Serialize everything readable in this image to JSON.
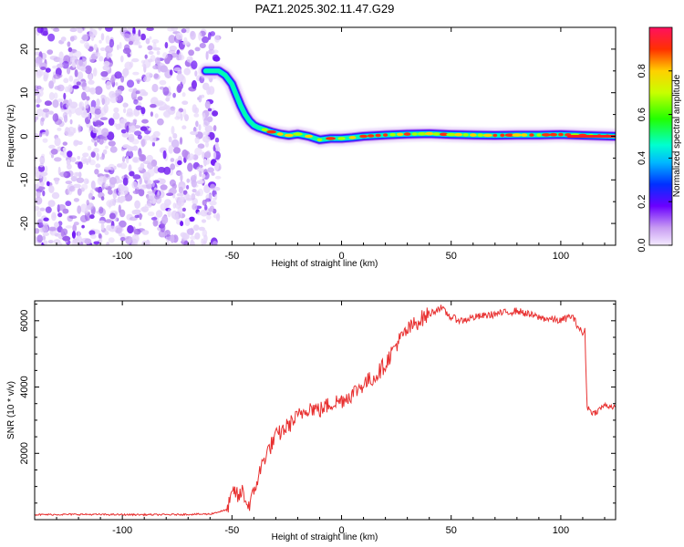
{
  "title": "PAZ1.2025.302.11.47.G29",
  "chart_data": [
    {
      "type": "heatmap",
      "name": "spectrogram",
      "xlabel": "Height of straight line (km)",
      "ylabel": "Frequency (Hz)",
      "xlim": [
        -140,
        125
      ],
      "ylim": [
        -25,
        25
      ],
      "x_ticks": [
        -100,
        -50,
        0,
        50,
        100
      ],
      "y_ticks": [
        -20,
        -10,
        0,
        10,
        20
      ],
      "colorbar": {
        "label": "Normalized spectral amplitude",
        "range": [
          0,
          1
        ],
        "ticks": [
          0.0,
          0.2,
          0.4,
          0.6,
          0.8
        ]
      },
      "noise_region_km": [
        -140,
        -56
      ],
      "ridge": {
        "x": [
          -62,
          -56,
          -53,
          -50,
          -48,
          -46,
          -44,
          -42,
          -40,
          -38,
          -35,
          -32,
          -28,
          -24,
          -20,
          -15,
          -10,
          -5,
          0,
          5,
          10,
          20,
          30,
          40,
          50,
          60,
          70,
          80,
          90,
          100,
          110,
          125
        ],
        "y": [
          15,
          15,
          14,
          12,
          9.5,
          7,
          5,
          3.5,
          2.5,
          2,
          1.5,
          1,
          0.5,
          0.2,
          0.5,
          0,
          -0.8,
          -0.5,
          -0.5,
          -0.3,
          0,
          0.3,
          0.5,
          0.6,
          0.4,
          0.3,
          0.2,
          0.3,
          0.3,
          0.4,
          0.2,
          0
        ]
      }
    },
    {
      "type": "line",
      "name": "snr",
      "xlabel": "Height of straight line (km)",
      "ylabel": "SNR (10 * v/v)",
      "xlim": [
        -140,
        125
      ],
      "ylim": [
        0,
        6600
      ],
      "x_ticks": [
        -100,
        -50,
        0,
        50,
        100
      ],
      "y_ticks": [
        2000,
        4000,
        6000
      ],
      "color": "#e83030",
      "series": [
        {
          "name": "SNR",
          "x": [
            -140,
            -120,
            -100,
            -80,
            -60,
            -52,
            -49,
            -47,
            -45,
            -43,
            -41,
            -38,
            -35,
            -30,
            -25,
            -20,
            -15,
            -10,
            -5,
            0,
            5,
            10,
            15,
            20,
            25,
            30,
            35,
            40,
            45,
            50,
            55,
            60,
            70,
            80,
            90,
            100,
            105,
            110,
            111,
            112,
            115,
            120,
            125
          ],
          "y": [
            150,
            160,
            150,
            150,
            170,
            300,
            900,
            650,
            900,
            400,
            600,
            1300,
            1900,
            2500,
            2800,
            3100,
            3400,
            3300,
            3500,
            3600,
            3800,
            4100,
            4300,
            4700,
            5300,
            5700,
            6000,
            6200,
            6400,
            6100,
            6000,
            6100,
            6200,
            6300,
            6100,
            6000,
            6150,
            5600,
            5700,
            3400,
            3200,
            3450,
            3400
          ]
        }
      ]
    }
  ]
}
